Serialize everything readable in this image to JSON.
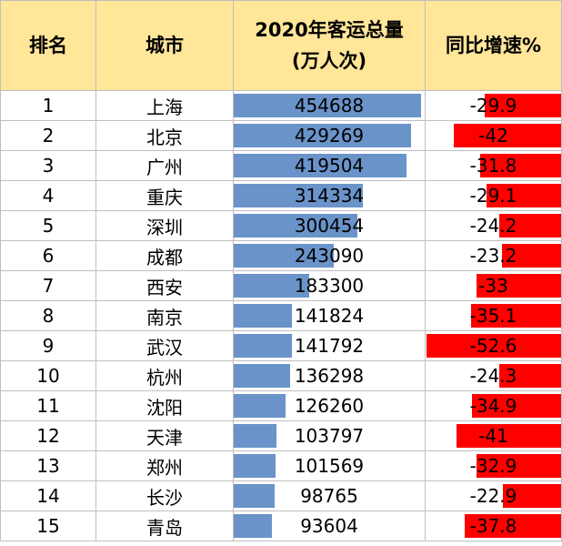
{
  "headers": {
    "rank": "排名",
    "city": "城市",
    "volume_line1": "2020年客运总量",
    "volume_line2": "(万人次)",
    "growth": "同比增速%"
  },
  "colors": {
    "header_bg": "#ffe699",
    "volume_bar": "#6a93c9",
    "growth_bar": "#ff0000",
    "grid": "#bfbfbf"
  },
  "chart_data": {
    "type": "table",
    "columns": [
      "排名",
      "城市",
      "2020年客运总量(万人次)",
      "同比增速%"
    ],
    "rows": [
      {
        "rank": "1",
        "city": "上海",
        "volume": 454688,
        "growth": -29.9
      },
      {
        "rank": "2",
        "city": "北京",
        "volume": 429269,
        "growth": -42
      },
      {
        "rank": "3",
        "city": "广州",
        "volume": 419504,
        "growth": -31.8
      },
      {
        "rank": "4",
        "city": "重庆",
        "volume": 314334,
        "growth": -29.1
      },
      {
        "rank": "5",
        "city": "深圳",
        "volume": 300454,
        "growth": -24.2
      },
      {
        "rank": "6",
        "city": "成都",
        "volume": 243090,
        "growth": -23.2
      },
      {
        "rank": "7",
        "city": "西安",
        "volume": 183300,
        "growth": -33
      },
      {
        "rank": "8",
        "city": "南京",
        "volume": 141824,
        "growth": -35.1
      },
      {
        "rank": "9",
        "city": "武汉",
        "volume": 141792,
        "growth": -52.6
      },
      {
        "rank": "10",
        "city": "杭州",
        "volume": 136298,
        "growth": -24.3
      },
      {
        "rank": "11",
        "city": "沈阳",
        "volume": 126260,
        "growth": -34.9
      },
      {
        "rank": "12",
        "city": "天津",
        "volume": 103797,
        "growth": -41
      },
      {
        "rank": "13",
        "city": "郑州",
        "volume": 101569,
        "growth": -32.9
      },
      {
        "rank": "14",
        "city": "长沙",
        "volume": 98765,
        "growth": -22.9
      },
      {
        "rank": "15",
        "city": "青岛",
        "volume": 93604,
        "growth": -37.8
      }
    ]
  }
}
